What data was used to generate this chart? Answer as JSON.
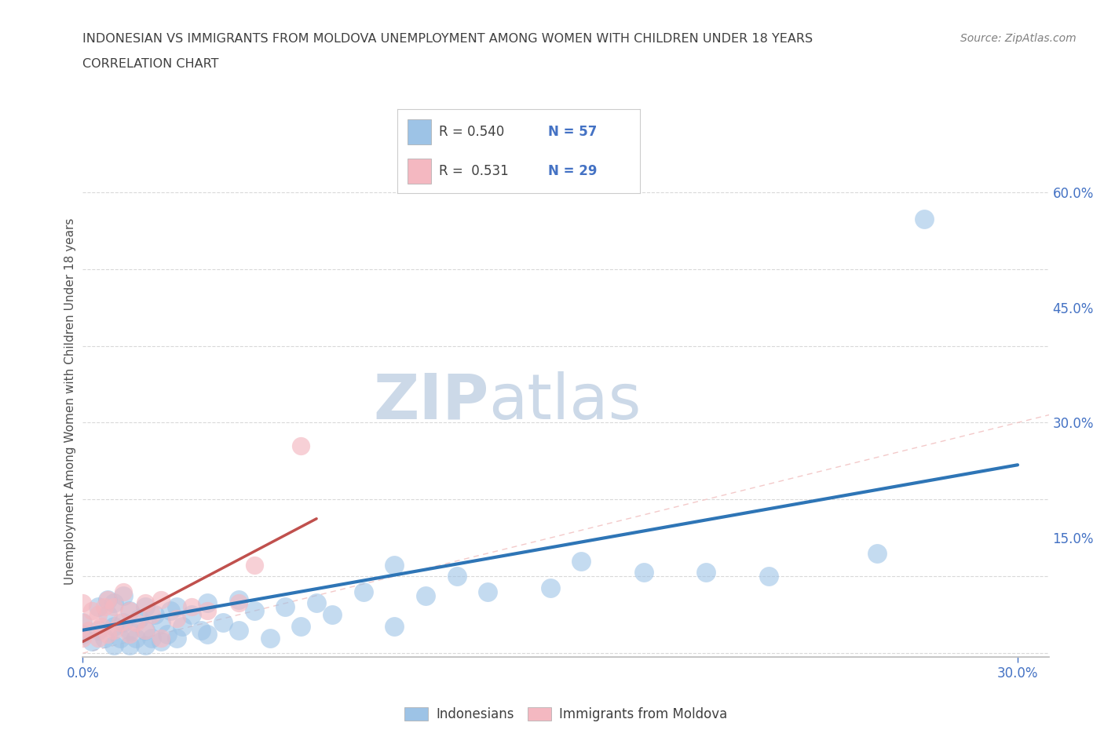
{
  "title_line1": "INDONESIAN VS IMMIGRANTS FROM MOLDOVA UNEMPLOYMENT AMONG WOMEN WITH CHILDREN UNDER 18 YEARS",
  "title_line2": "CORRELATION CHART",
  "source_text": "Source: ZipAtlas.com",
  "ylabel": "Unemployment Among Women with Children Under 18 years",
  "xlim": [
    0.0,
    0.31
  ],
  "ylim": [
    -0.005,
    0.66
  ],
  "xticks": [
    0.0,
    0.3
  ],
  "xtick_labels": [
    "0.0%",
    "30.0%"
  ],
  "yticks": [
    0.15,
    0.3,
    0.45,
    0.6
  ],
  "ytick_labels": [
    "15.0%",
    "30.0%",
    "45.0%",
    "60.0%"
  ],
  "indonesian_R": 0.54,
  "indonesian_N": 57,
  "moldova_R": 0.531,
  "moldova_N": 29,
  "blue_color": "#9dc3e6",
  "pink_color": "#f4b8c1",
  "blue_line_color": "#2e75b6",
  "pink_line_color": "#c0504d",
  "diag_color": "#f2c4c4",
  "watermark_zip": "ZIP",
  "watermark_atlas": "atlas",
  "background_color": "#ffffff",
  "grid_color": "#d0d0d0",
  "axis_color": "#bbbbbb",
  "tick_color": "#4472c4",
  "title_color": "#404040",
  "source_color": "#808080",
  "legend_text_color": "#404040",
  "indo_x": [
    0.0,
    0.0,
    0.003,
    0.005,
    0.005,
    0.007,
    0.008,
    0.008,
    0.01,
    0.01,
    0.01,
    0.012,
    0.013,
    0.013,
    0.015,
    0.015,
    0.015,
    0.017,
    0.018,
    0.02,
    0.02,
    0.02,
    0.022,
    0.023,
    0.025,
    0.025,
    0.027,
    0.028,
    0.03,
    0.03,
    0.032,
    0.035,
    0.038,
    0.04,
    0.04,
    0.045,
    0.05,
    0.05,
    0.055,
    0.06,
    0.065,
    0.07,
    0.075,
    0.08,
    0.09,
    0.1,
    0.1,
    0.11,
    0.12,
    0.13,
    0.15,
    0.16,
    0.18,
    0.2,
    0.22,
    0.255,
    0.27
  ],
  "indo_y": [
    0.04,
    0.025,
    0.015,
    0.03,
    0.06,
    0.02,
    0.05,
    0.07,
    0.01,
    0.035,
    0.065,
    0.02,
    0.04,
    0.075,
    0.01,
    0.03,
    0.055,
    0.02,
    0.045,
    0.01,
    0.03,
    0.06,
    0.02,
    0.05,
    0.015,
    0.04,
    0.025,
    0.055,
    0.02,
    0.06,
    0.035,
    0.05,
    0.03,
    0.025,
    0.065,
    0.04,
    0.03,
    0.07,
    0.055,
    0.02,
    0.06,
    0.035,
    0.065,
    0.05,
    0.08,
    0.035,
    0.115,
    0.075,
    0.1,
    0.08,
    0.085,
    0.12,
    0.105,
    0.105,
    0.1,
    0.13,
    0.565
  ],
  "mol_x": [
    0.0,
    0.0,
    0.0,
    0.002,
    0.003,
    0.005,
    0.005,
    0.006,
    0.007,
    0.008,
    0.008,
    0.01,
    0.01,
    0.012,
    0.013,
    0.015,
    0.015,
    0.017,
    0.02,
    0.02,
    0.022,
    0.025,
    0.025,
    0.03,
    0.035,
    0.04,
    0.05,
    0.055,
    0.07
  ],
  "mol_y": [
    0.02,
    0.04,
    0.065,
    0.03,
    0.055,
    0.02,
    0.05,
    0.035,
    0.06,
    0.025,
    0.07,
    0.03,
    0.06,
    0.04,
    0.08,
    0.025,
    0.055,
    0.04,
    0.03,
    0.065,
    0.05,
    0.02,
    0.07,
    0.045,
    0.06,
    0.055,
    0.065,
    0.115,
    0.27
  ],
  "blue_line_x": [
    0.0,
    0.3
  ],
  "blue_line_y": [
    0.03,
    0.245
  ],
  "pink_line_x": [
    0.0,
    0.075
  ],
  "pink_line_y": [
    0.015,
    0.175
  ]
}
